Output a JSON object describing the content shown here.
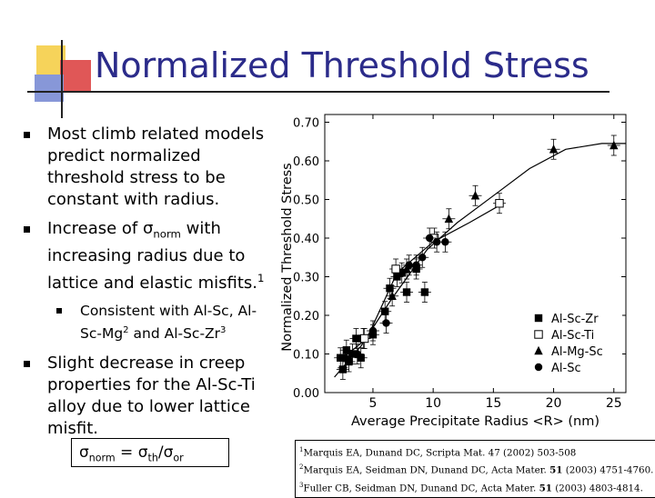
{
  "title": "Normalized Threshold Stress",
  "bullets": [
    {
      "text": "Most climb related models predict normalized threshold stress to be constant with radius."
    },
    {
      "pre": "Increase of ",
      "sym": "σ",
      "symsub": "norm",
      "post": " with increasing radius due to lattice and elastic misfits.",
      "ref": "1"
    },
    {
      "sub_pre": "Consistent with Al-Sc, Al-Sc-Mg",
      "sub_mid_sup": "2",
      "sub_mid": " and Al-Sc-Zr",
      "sub_sup2": "3"
    },
    {
      "text": "Slight decrease in creep properties for the Al-Sc-Ti alloy due to lower lattice misfit."
    }
  ],
  "formula": {
    "lhs": "σ",
    "lhs_sub": "norm",
    "eq": " = ",
    "num": "σ",
    "num_sub": "th",
    "slash": "/",
    "den": "σ",
    "den_sub": "or"
  },
  "refs": [
    {
      "n": "1",
      "text": "Marquis EA, Dunand DC, Scripta Mat. 47 (2002) 503-508"
    },
    {
      "n": "2",
      "text": "Marquis EA, Seidman DN, Dunand DC, Acta Mater. ",
      "bold": "51",
      "tail": " (2003) 4751-4760."
    },
    {
      "n": "3",
      "text": "Fuller CB, Seidman DN, Dunand DC, Acta Mater. ",
      "bold": "51",
      "tail": " (2003) 4803-4814."
    }
  ],
  "chart_data": {
    "type": "scatter",
    "xlabel": "Average Precipitate Radius <R> (nm)",
    "ylabel": "Normalized Threshold Stress",
    "xlim": [
      1,
      26
    ],
    "ylim": [
      0,
      0.72
    ],
    "xticks": [
      "5",
      "10",
      "15",
      "20",
      "25"
    ],
    "yticks": [
      "0.00",
      "0.10",
      "0.20",
      "0.30",
      "0.40",
      "0.50",
      "0.60",
      "0.70"
    ],
    "legend_position": "bottom-right",
    "series": [
      {
        "name": "Al-Sc-Zr",
        "marker": "square-filled",
        "points": [
          {
            "x": 2.3,
            "y": 0.09
          },
          {
            "x": 2.5,
            "y": 0.06
          },
          {
            "x": 2.8,
            "y": 0.11
          },
          {
            "x": 3.0,
            "y": 0.08
          },
          {
            "x": 3.3,
            "y": 0.1
          },
          {
            "x": 3.6,
            "y": 0.14
          },
          {
            "x": 4.0,
            "y": 0.09
          },
          {
            "x": 4.2,
            "y": 0.14
          },
          {
            "x": 5.0,
            "y": 0.15
          },
          {
            "x": 6.0,
            "y": 0.21
          },
          {
            "x": 6.4,
            "y": 0.27
          },
          {
            "x": 7.0,
            "y": 0.3
          },
          {
            "x": 7.4,
            "y": 0.31
          },
          {
            "x": 7.8,
            "y": 0.26
          },
          {
            "x": 8.6,
            "y": 0.32
          },
          {
            "x": 9.3,
            "y": 0.26
          }
        ]
      },
      {
        "name": "Al-Sc-Ti",
        "marker": "square-open",
        "points": [
          {
            "x": 4.3,
            "y": 0.14
          },
          {
            "x": 6.9,
            "y": 0.32
          },
          {
            "x": 10.1,
            "y": 0.4
          },
          {
            "x": 15.5,
            "y": 0.49
          }
        ]
      },
      {
        "name": "Al-Mg-Sc",
        "marker": "triangle-filled",
        "points": [
          {
            "x": 6.6,
            "y": 0.25
          },
          {
            "x": 7.8,
            "y": 0.32
          },
          {
            "x": 11.3,
            "y": 0.45
          },
          {
            "x": 13.5,
            "y": 0.51
          },
          {
            "x": 20.0,
            "y": 0.63
          },
          {
            "x": 25.0,
            "y": 0.64
          }
        ]
      },
      {
        "name": "Al-Sc",
        "marker": "circle-filled",
        "points": [
          {
            "x": 2.7,
            "y": 0.09
          },
          {
            "x": 3.7,
            "y": 0.1
          },
          {
            "x": 5.0,
            "y": 0.16
          },
          {
            "x": 6.1,
            "y": 0.18
          },
          {
            "x": 8.0,
            "y": 0.33
          },
          {
            "x": 8.6,
            "y": 0.33
          },
          {
            "x": 9.1,
            "y": 0.35
          },
          {
            "x": 9.7,
            "y": 0.4
          },
          {
            "x": 10.3,
            "y": 0.39
          },
          {
            "x": 11.0,
            "y": 0.39
          }
        ]
      }
    ],
    "fit_lines": [
      {
        "points": [
          {
            "x": 1.8,
            "y": 0.04
          },
          {
            "x": 4,
            "y": 0.12
          },
          {
            "x": 6.5,
            "y": 0.24
          },
          {
            "x": 9.5,
            "y": 0.37
          },
          {
            "x": 12,
            "y": 0.44
          },
          {
            "x": 15,
            "y": 0.51
          },
          {
            "x": 18,
            "y": 0.58
          },
          {
            "x": 21,
            "y": 0.63
          },
          {
            "x": 24,
            "y": 0.645
          },
          {
            "x": 26,
            "y": 0.645
          }
        ]
      },
      {
        "points": [
          {
            "x": 2.5,
            "y": 0.09
          },
          {
            "x": 4.5,
            "y": 0.14
          },
          {
            "x": 7,
            "y": 0.31
          },
          {
            "x": 10,
            "y": 0.39
          },
          {
            "x": 13,
            "y": 0.44
          },
          {
            "x": 15.8,
            "y": 0.49
          }
        ]
      }
    ]
  }
}
